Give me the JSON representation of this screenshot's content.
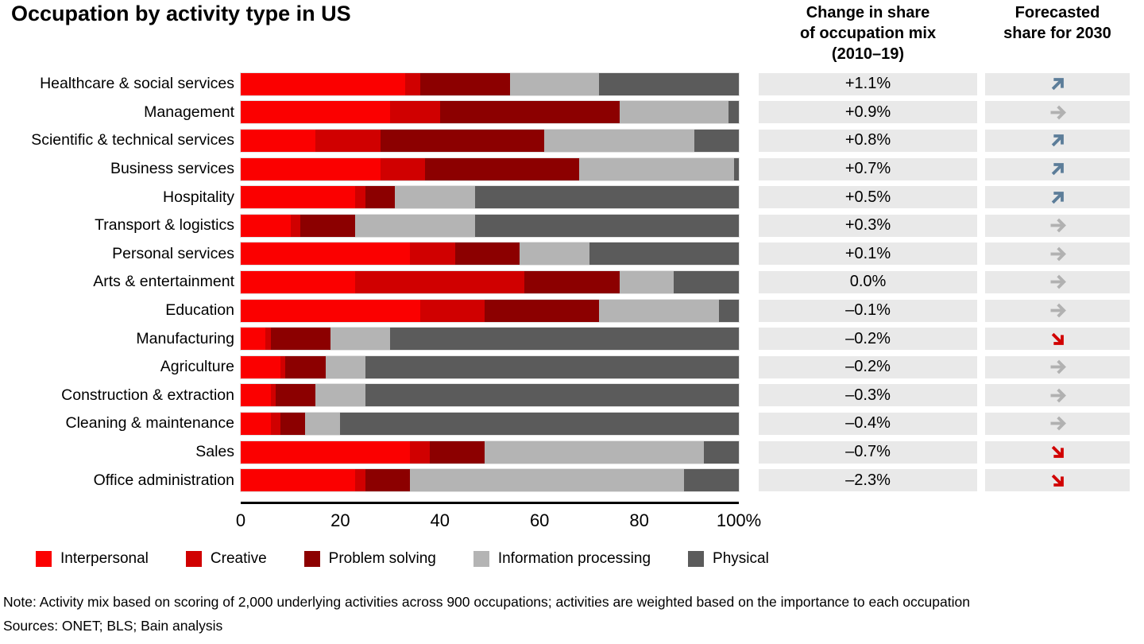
{
  "title": "Occupation by activity type in US",
  "column_headers": {
    "change": "Change in share\nof occupation mix\n(2010–19)",
    "forecast": "Forecasted\nshare for 2030"
  },
  "legend": [
    "Interpersonal",
    "Creative",
    "Problem solving",
    "Information processing",
    "Physical"
  ],
  "activity_colors": [
    "#fb0000",
    "#d00000",
    "#8c0000",
    "#b4b4b4",
    "#5b5b5b"
  ],
  "trend_colors": {
    "up": "#5c7d99",
    "flat": "#b1b1b1",
    "down": "#d10000"
  },
  "stripe_color": "#e9e9e9",
  "axis": {
    "tick_labels": [
      "0",
      "20",
      "40",
      "60",
      "80",
      "100%"
    ],
    "min": 0,
    "max": 100
  },
  "rows": [
    {
      "label": "Healthcare & social services",
      "values": [
        33,
        3,
        18,
        18,
        28
      ],
      "change": "+1.1%",
      "trend": "up"
    },
    {
      "label": "Management",
      "values": [
        30,
        10,
        36,
        22,
        2
      ],
      "change": "+0.9%",
      "trend": "flat"
    },
    {
      "label": "Scientific & technical services",
      "values": [
        15,
        13,
        33,
        30,
        9
      ],
      "change": "+0.8%",
      "trend": "up"
    },
    {
      "label": "Business services",
      "values": [
        28,
        9,
        31,
        31,
        1
      ],
      "change": "+0.7%",
      "trend": "up"
    },
    {
      "label": "Hospitality",
      "values": [
        23,
        2,
        6,
        16,
        53
      ],
      "change": "+0.5%",
      "trend": "up"
    },
    {
      "label": "Transport & logistics",
      "values": [
        10,
        2,
        11,
        24,
        53
      ],
      "change": "+0.3%",
      "trend": "flat"
    },
    {
      "label": "Personal services",
      "values": [
        34,
        9,
        13,
        14,
        30
      ],
      "change": "+0.1%",
      "trend": "flat"
    },
    {
      "label": "Arts & entertainment",
      "values": [
        23,
        34,
        19,
        11,
        13
      ],
      "change": "0.0%",
      "trend": "flat"
    },
    {
      "label": "Education",
      "values": [
        36,
        13,
        23,
        24,
        4
      ],
      "change": "–0.1%",
      "trend": "flat"
    },
    {
      "label": "Manufacturing",
      "values": [
        5,
        1,
        12,
        12,
        70
      ],
      "change": "–0.2%",
      "trend": "down"
    },
    {
      "label": "Agriculture",
      "values": [
        8,
        1,
        8,
        8,
        75
      ],
      "change": "–0.2%",
      "trend": "flat"
    },
    {
      "label": "Construction & extraction",
      "values": [
        6,
        1,
        8,
        10,
        75
      ],
      "change": "–0.3%",
      "trend": "flat"
    },
    {
      "label": "Cleaning & maintenance",
      "values": [
        6,
        2,
        5,
        7,
        80
      ],
      "change": "–0.4%",
      "trend": "flat"
    },
    {
      "label": "Sales",
      "values": [
        34,
        4,
        11,
        44,
        7
      ],
      "change": "–0.7%",
      "trend": "down"
    },
    {
      "label": "Office administration",
      "values": [
        23,
        2,
        9,
        55,
        11
      ],
      "change": "–2.3%",
      "trend": "down"
    }
  ],
  "chart_data": {
    "type": "bar",
    "variant": "horizontal-stacked",
    "title": "Occupation by activity type in US",
    "xlabel": "",
    "ylabel": "",
    "xlim": [
      0,
      100
    ],
    "x_ticks": [
      0,
      20,
      40,
      60,
      80,
      100
    ],
    "x_unit": "%",
    "grid": false,
    "legend_position": "bottom",
    "categories": [
      "Healthcare & social services",
      "Management",
      "Scientific & technical services",
      "Business services",
      "Hospitality",
      "Transport & logistics",
      "Personal services",
      "Arts & entertainment",
      "Education",
      "Manufacturing",
      "Agriculture",
      "Construction & extraction",
      "Cleaning & maintenance",
      "Sales",
      "Office administration"
    ],
    "series": [
      {
        "name": "Interpersonal",
        "values": [
          33,
          30,
          15,
          28,
          23,
          10,
          34,
          23,
          36,
          5,
          8,
          6,
          6,
          34,
          23
        ]
      },
      {
        "name": "Creative",
        "values": [
          3,
          10,
          13,
          9,
          2,
          2,
          9,
          34,
          13,
          1,
          1,
          1,
          2,
          4,
          2
        ]
      },
      {
        "name": "Problem solving",
        "values": [
          18,
          36,
          33,
          31,
          6,
          11,
          13,
          19,
          23,
          12,
          8,
          8,
          5,
          11,
          9
        ]
      },
      {
        "name": "Information processing",
        "values": [
          18,
          22,
          30,
          31,
          16,
          24,
          14,
          11,
          24,
          12,
          8,
          10,
          7,
          44,
          55
        ]
      },
      {
        "name": "Physical",
        "values": [
          28,
          2,
          9,
          1,
          53,
          53,
          30,
          13,
          4,
          70,
          75,
          75,
          80,
          7,
          11
        ]
      }
    ],
    "extra_columns": [
      {
        "header": "Change in share of occupation mix (2010–19)",
        "values": [
          "+1.1%",
          "+0.9%",
          "+0.8%",
          "+0.7%",
          "+0.5%",
          "+0.3%",
          "+0.1%",
          "0.0%",
          "–0.1%",
          "–0.2%",
          "–0.2%",
          "–0.3%",
          "–0.4%",
          "–0.7%",
          "–2.3%"
        ]
      },
      {
        "header": "Forecasted share for 2030",
        "values": [
          "up",
          "flat",
          "up",
          "up",
          "up",
          "flat",
          "flat",
          "flat",
          "flat",
          "down",
          "flat",
          "flat",
          "flat",
          "down",
          "down"
        ]
      }
    ]
  },
  "footnotes": {
    "note": "Note: Activity mix based on scoring of 2,000 underlying activities across 900 occupations; activities are weighted based on the importance to each occupation",
    "sources": "Sources: ONET; BLS; Bain analysis"
  }
}
